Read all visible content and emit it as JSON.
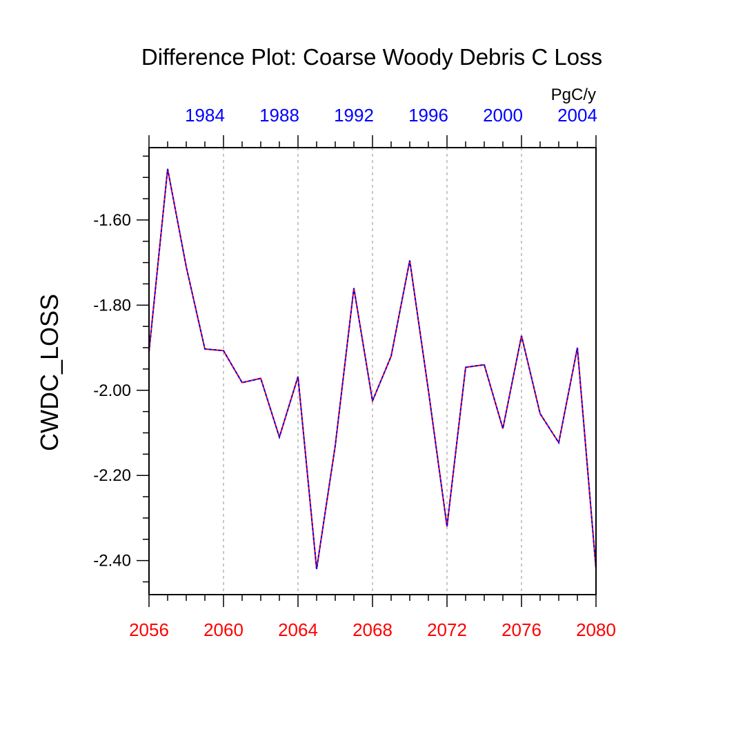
{
  "chart_data": {
    "type": "line",
    "title": "Difference Plot: Coarse Woody Debris C Loss",
    "units": "PgC/y",
    "ylabel": "CWDC_LOSS",
    "xlabel": "",
    "xlim": [
      2056,
      2080
    ],
    "ylim": [
      -2.48,
      -1.43
    ],
    "y_ticks": [
      -2.4,
      -2.2,
      -2.0,
      -1.8,
      -1.6
    ],
    "y_tick_labels": [
      "-2.40",
      "-2.20",
      "-2.00",
      "-1.80",
      "-1.60"
    ],
    "y_minor_step": 0.05,
    "x_ticks_bottom": [
      2056,
      2060,
      2064,
      2068,
      2072,
      2076,
      2080
    ],
    "x_tick_labels_bottom": [
      "2056",
      "2060",
      "2064",
      "2068",
      "2072",
      "2076",
      "2080"
    ],
    "x_ticks_top": [
      1984,
      1988,
      1992,
      1996,
      2000,
      2004
    ],
    "x_tick_labels_top": [
      "1984",
      "1988",
      "1992",
      "1996",
      "2000",
      "2004"
    ],
    "x_top_offset": [
      2056,
      1981
    ],
    "grid": "vertical dashed at major bottom ticks",
    "colors": {
      "bottom_axis": "#ff0000",
      "top_axis": "#0000ff",
      "series_a": "#ff0000",
      "series_b": "#0000ff",
      "grid": "#b4b4b4"
    },
    "x": [
      2056,
      2057,
      2058,
      2059,
      2060,
      2061,
      2062,
      2063,
      2064,
      2065,
      2066,
      2067,
      2068,
      2069,
      2070,
      2071,
      2072,
      2073,
      2074,
      2075,
      2076,
      2077,
      2078,
      2079,
      2080
    ],
    "series": [
      {
        "values": [
          -1.91,
          -1.48,
          -1.71,
          -1.903,
          -1.907,
          -1.982,
          -1.972,
          -2.11,
          -1.968,
          -2.42,
          -2.13,
          -1.76,
          -2.025,
          -1.92,
          -1.695,
          -2.0,
          -2.32,
          -1.946,
          -1.94,
          -2.09,
          -1.872,
          -2.055,
          -2.123,
          -1.9,
          -2.42
        ]
      },
      {
        "values": [
          -1.91,
          -1.48,
          -1.71,
          -1.903,
          -1.907,
          -1.982,
          -1.972,
          -2.11,
          -1.968,
          -2.42,
          -2.13,
          -1.76,
          -2.025,
          -1.92,
          -1.695,
          -2.0,
          -2.32,
          -1.946,
          -1.94,
          -2.09,
          -1.872,
          -2.055,
          -2.123,
          -1.9,
          -2.42
        ]
      }
    ]
  }
}
